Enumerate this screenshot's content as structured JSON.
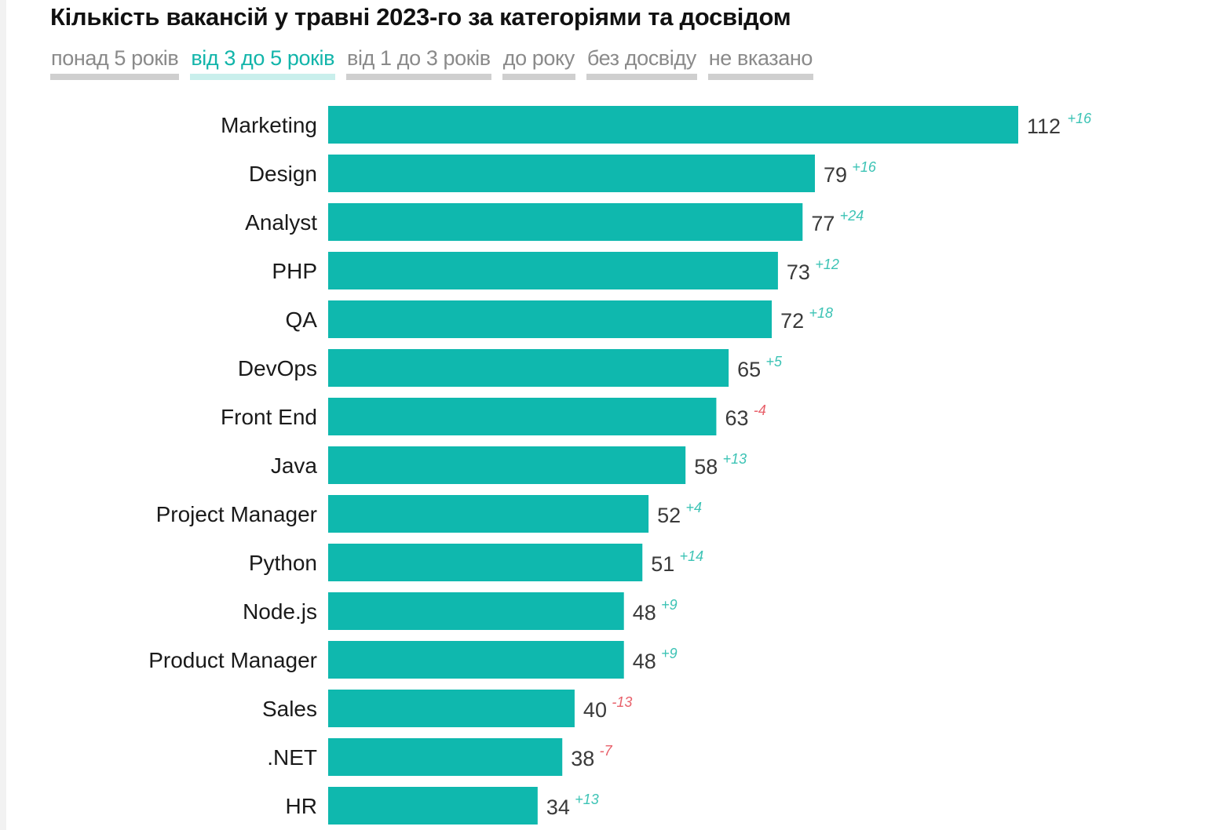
{
  "title": "Кількість вакансій у травні 2023-го за категоріями та досвідом",
  "tabs": [
    {
      "label": "понад 5 років",
      "active": false
    },
    {
      "label": "від 3 до 5 років",
      "active": true
    },
    {
      "label": "від 1 до 3 років",
      "active": false
    },
    {
      "label": "до року",
      "active": false
    },
    {
      "label": "без досвіду",
      "active": false
    },
    {
      "label": "не вказано",
      "active": false
    }
  ],
  "colors": {
    "bar": "#0fb8ae",
    "positive_delta": "#3cc3b5",
    "negative_delta": "#e8606a",
    "active_tab": "#12b5aa"
  },
  "chart_data": {
    "type": "bar",
    "orientation": "horizontal",
    "title": "Кількість вакансій у травні 2023-го за категоріями та досвідом",
    "categories": [
      "Marketing",
      "Design",
      "Analyst",
      "PHP",
      "QA",
      "DevOps",
      "Front End",
      "Java",
      "Project Manager",
      "Python",
      "Node.js",
      "Product Manager",
      "Sales",
      ".NET",
      "HR"
    ],
    "values": [
      112,
      79,
      77,
      73,
      72,
      65,
      63,
      58,
      52,
      51,
      48,
      48,
      40,
      38,
      34
    ],
    "deltas": [
      "+16",
      "+16",
      "+24",
      "+12",
      "+18",
      "+5",
      "-4",
      "+13",
      "+4",
      "+14",
      "+9",
      "+9",
      "-13",
      "-7",
      "+13"
    ],
    "xlim": [
      0,
      112
    ],
    "grid": false,
    "legend": "none"
  }
}
